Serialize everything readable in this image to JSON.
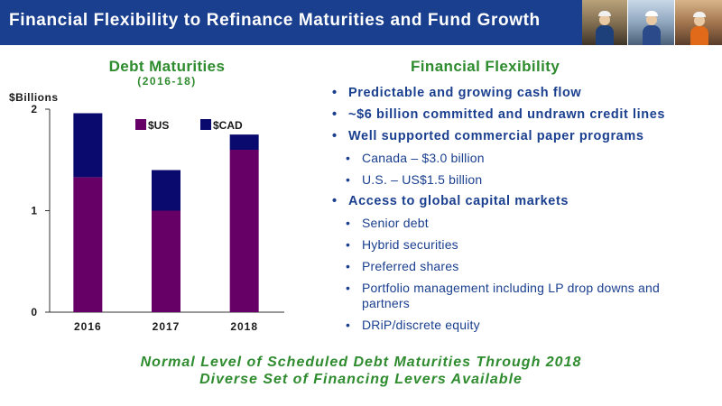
{
  "header": {
    "title": "Financial Flexibility to Refinance Maturities and Fund Growth"
  },
  "chart_data": {
    "type": "bar",
    "stacked": true,
    "title": "Debt Maturities",
    "subtitle": "(2016-18)",
    "ylabel": "$Billions",
    "xlabel": "",
    "categories": [
      "2016",
      "2017",
      "2018"
    ],
    "series": [
      {
        "name": "$US",
        "color": "#660066",
        "values": [
          1.33,
          1.0,
          1.6
        ]
      },
      {
        "name": "$CAD",
        "color": "#0a0a6e",
        "values": [
          0.63,
          0.4,
          0.15
        ]
      }
    ],
    "ylim": [
      0,
      2
    ],
    "yticks": [
      0,
      1,
      2
    ],
    "legend": "top-right",
    "grid": false
  },
  "flexibility": {
    "title": "Financial Flexibility",
    "items": [
      {
        "level": 1,
        "text": "Predictable and growing cash flow"
      },
      {
        "level": 1,
        "text": "~$6 billion committed and undrawn credit lines"
      },
      {
        "level": 1,
        "text": "Well supported commercial paper programs"
      },
      {
        "level": 2,
        "text": "Canada – $3.0 billion"
      },
      {
        "level": 2,
        "text": "U.S. – US$1.5 billion"
      },
      {
        "level": 1,
        "text": "Access to global capital markets"
      },
      {
        "level": 2,
        "text": "Senior debt"
      },
      {
        "level": 2,
        "text": "Hybrid securities"
      },
      {
        "level": 2,
        "text": "Preferred shares"
      },
      {
        "level": 2,
        "text": "Portfolio management including LP drop downs and partners"
      },
      {
        "level": 2,
        "text": "DRiP/discrete equity"
      }
    ]
  },
  "footer": {
    "line1": "Normal Level of Scheduled Debt Maturities Through 2018",
    "line2": "Diverse Set of Financing Levers Available"
  },
  "colors": {
    "header_bg": "#1a3f8f",
    "green": "#2e8b2e",
    "navy_text": "#1a3f8f"
  }
}
